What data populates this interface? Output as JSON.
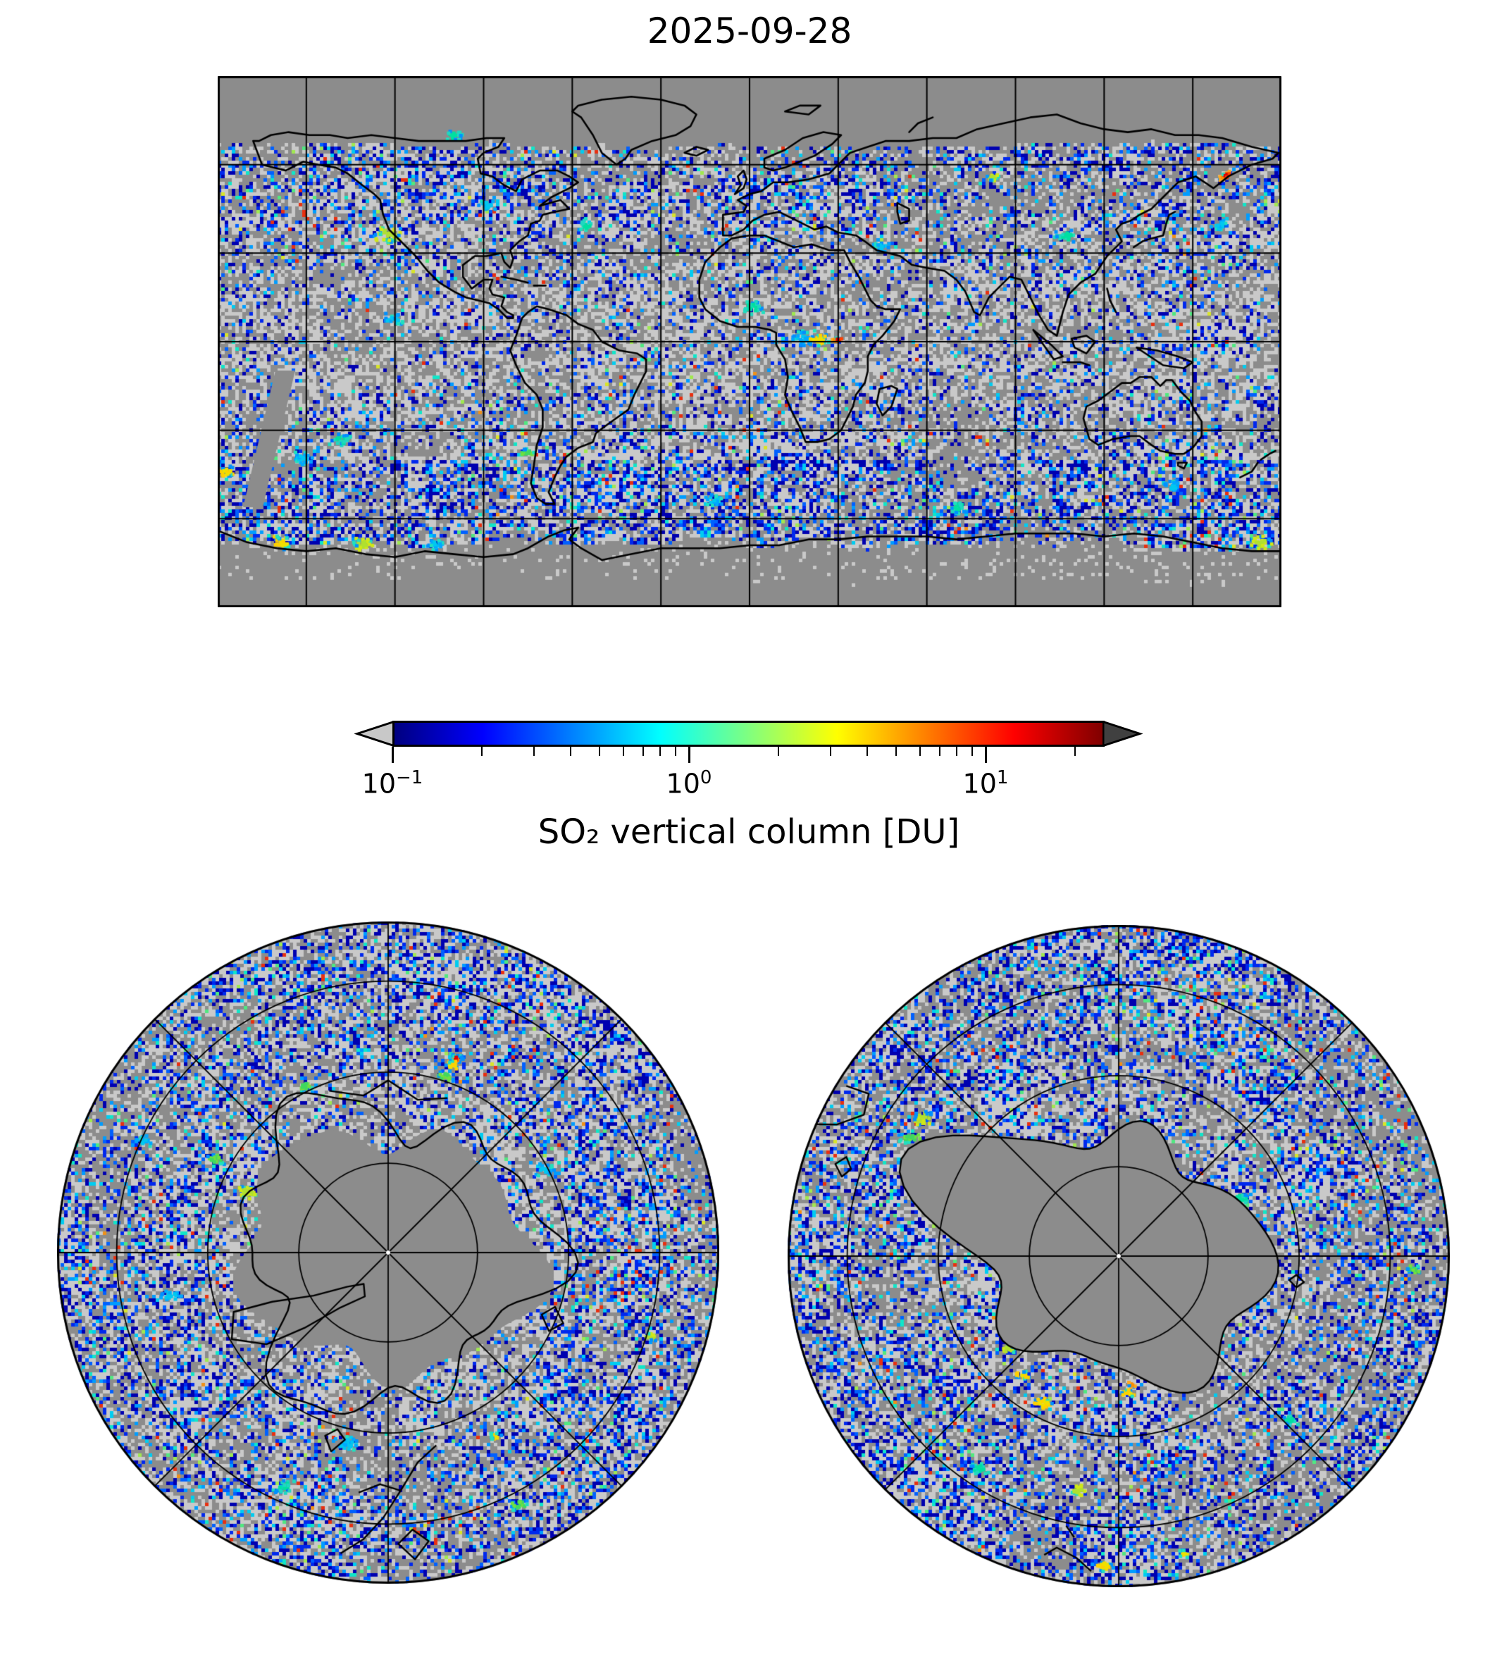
{
  "title": "2025-09-28",
  "colorbar": {
    "label": "SO₂ vertical column [DU]",
    "scale": "log",
    "unit": "DU",
    "min": 0.1,
    "max": 25,
    "ticks": [
      {
        "base": "10",
        "exp": "−1",
        "value": 0.1
      },
      {
        "base": "10",
        "exp": "0",
        "value": 1
      },
      {
        "base": "10",
        "exp": "1",
        "value": 10
      }
    ],
    "minor_tick_values": [
      0.2,
      0.3,
      0.4,
      0.5,
      0.6,
      0.7,
      0.8,
      0.9,
      2,
      3,
      4,
      5,
      6,
      7,
      8,
      9,
      20
    ],
    "colormap": "jet",
    "gradient_stops": [
      "#000080 0%",
      "#0000ff 12.5%",
      "#00ffff 37.5%",
      "#ffff00 62.5%",
      "#ff0000 87.5%",
      "#800000 100%"
    ],
    "under_arrow_color": "#c8c8c8",
    "over_arrow_color": "#404040"
  },
  "panels": {
    "world": {
      "projection": "equirectangular",
      "lon_min": -180,
      "lon_max": 180,
      "lat_min": -90,
      "lat_max": 90,
      "grid_deg": 30
    },
    "arctic": {
      "projection": "polar-north",
      "latitude_rings": 3,
      "meridian_spacing_deg": 45
    },
    "antarctic": {
      "projection": "polar-south",
      "latitude_rings": 3,
      "meridian_spacing_deg": 45
    }
  },
  "colors": {
    "background": "#ffffff",
    "no_data": "#8c8c8c",
    "below_range": "#c9c9c9",
    "coastline": "#000000",
    "grid": "#000000",
    "text": "#000000"
  },
  "chart_data": {
    "type": "heatmap",
    "title": "2025-09-28",
    "colorbar_label": "SO₂ vertical column [DU]",
    "scale": "log",
    "tick_values": [
      0.1,
      1,
      10
    ],
    "range": [
      0.1,
      25
    ],
    "colormap": "jet",
    "panels": [
      "global map (equirectangular, 30° graticule)",
      "Arctic polar view",
      "Antarctic polar view"
    ],
    "legend_position": "bottom of world map",
    "notable_hotspots": [
      "volcanic plume with red/orange core over central Africa (~24°E, 0°)",
      "red-cored spot over Kamchatka (~161°E, 57°N)",
      "red spot in upper-right of Arctic panel",
      "yellow plumes biting into the Antarctic no-data edge (world map bottom and Antarctic panel)"
    ],
    "data_character": "sparse speckled field, mostly 0.1–1 DU (blue/cyan); medium gray = no data; light gray = below 0.1 DU"
  }
}
